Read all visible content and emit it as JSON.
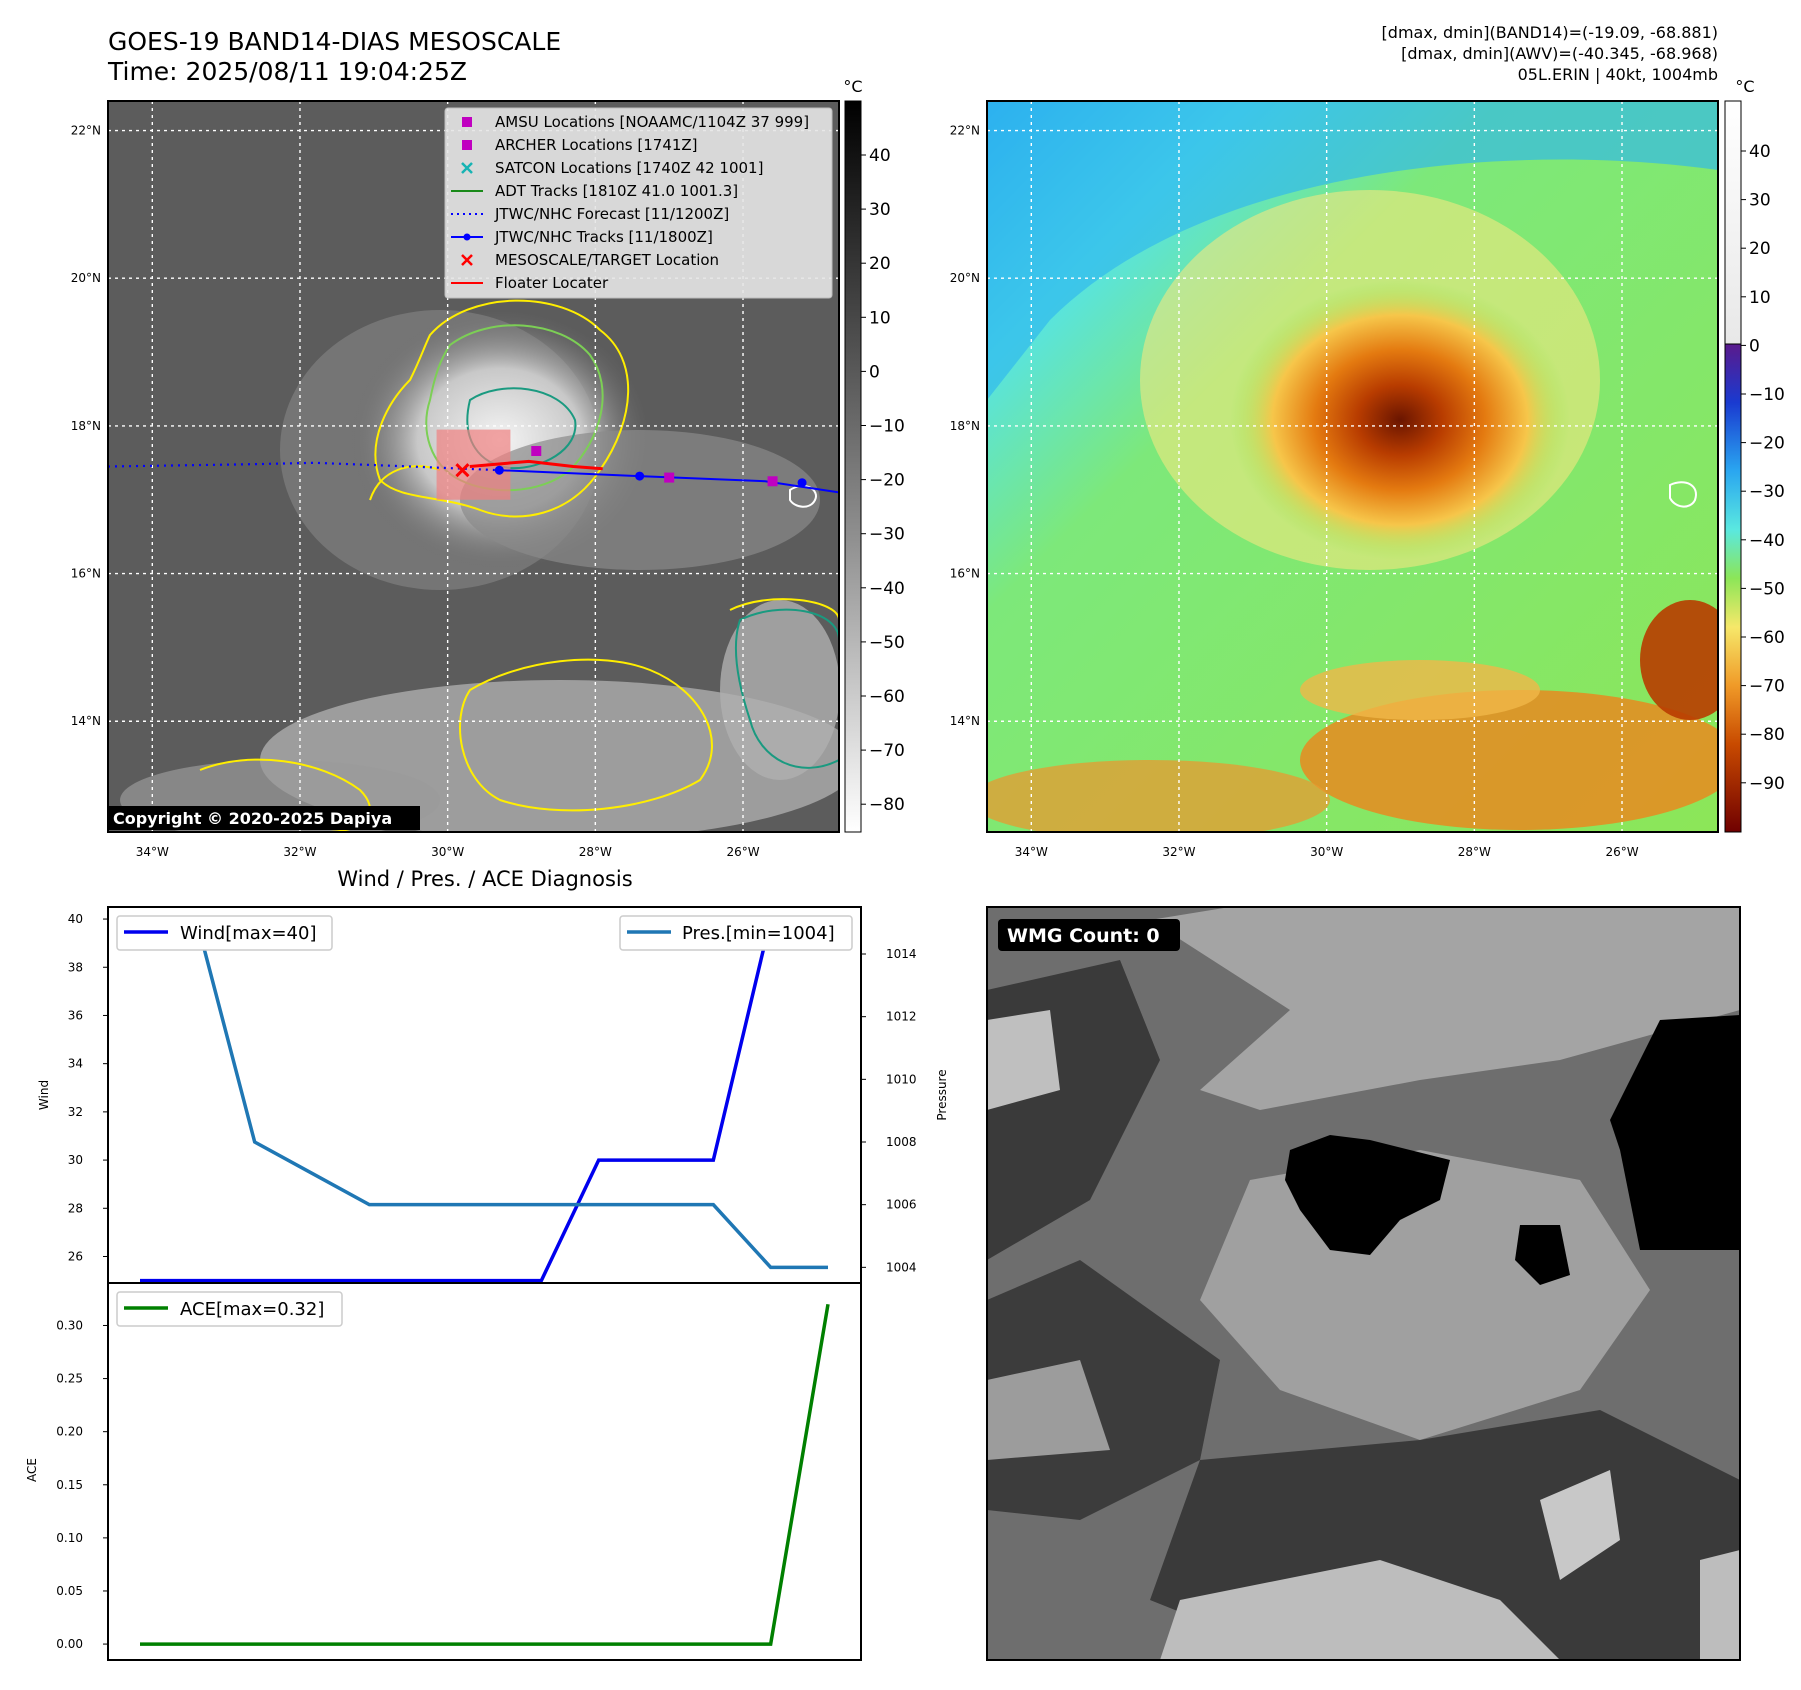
{
  "header": {
    "title_line1": "GOES-19 BAND14-DIAS MESOSCALE",
    "title_line2": "Time: 2025/08/11 19:04:25Z",
    "info_line1": "[dmax, dmin](BAND14)=(-19.09, -68.881)",
    "info_line2": "[dmax, dmin](AWV)=(-40.345, -68.968)",
    "info_line3": "05L.ERIN | 40kt, 1004mb"
  },
  "copyright": "Copyright © 2020-2025 Dapiya",
  "map": {
    "lat_ticks": [
      "22°N",
      "20°N",
      "18°N",
      "16°N",
      "14°N"
    ],
    "lon_ticks": [
      "34°W",
      "32°W",
      "30°W",
      "28°W",
      "26°W"
    ],
    "lon_range": [
      -34.6,
      -24.7
    ],
    "lat_range": [
      12.5,
      22.4
    ]
  },
  "legend": {
    "items": [
      {
        "label": "AMSU Locations [NOAAMC/1104Z 37 999]",
        "color": "#c000c0",
        "marker": "square"
      },
      {
        "label": "ARCHER Locations [1741Z]",
        "color": "#c000c0",
        "marker": "square"
      },
      {
        "label": "SATCON Locations [1740Z 42 1001]",
        "color": "#17b3b3",
        "marker": "x"
      },
      {
        "label": "ADT Tracks [1810Z 41.0 1001.3]",
        "color": "#1a8a1a",
        "marker": "line"
      },
      {
        "label": "JTWC/NHC Forecast [11/1200Z]",
        "color": "#0000ff",
        "marker": "dotted"
      },
      {
        "label": "JTWC/NHC Tracks [11/1800Z]",
        "color": "#0000ff",
        "marker": "line-dot"
      },
      {
        "label": "MESOSCALE/TARGET Location",
        "color": "#ff0000",
        "marker": "x"
      },
      {
        "label": "Floater Locater",
        "color": "#ff0000",
        "marker": "line"
      }
    ]
  },
  "colorbar_left": {
    "unit": "°C",
    "ticks": [
      "40",
      "30",
      "20",
      "10",
      "0",
      "−10",
      "−20",
      "−30",
      "−40",
      "−50",
      "−60",
      "−70",
      "−80"
    ]
  },
  "colorbar_right": {
    "unit": "°C",
    "ticks": [
      "40",
      "30",
      "20",
      "10",
      "0",
      "−10",
      "−20",
      "−30",
      "−40",
      "−50",
      "−60",
      "−70",
      "−80",
      "−90"
    ]
  },
  "panel_wmg": {
    "label": "WMG Count: 0"
  },
  "colors": {
    "wind": "#0000ee",
    "pressure": "#1f77b4",
    "ace": "#008000",
    "contour_yellow": "#ffee00",
    "contour_green": "#7ccf55",
    "contour_teal": "#1a9a80"
  },
  "chart_data": [
    {
      "type": "line",
      "title": "Wind / Pres. / ACE Diagnosis",
      "ylabel": "Wind",
      "y2label": "Pressure",
      "ylim": [
        24.9,
        40.5
      ],
      "y2lim": [
        1003.5,
        1015.5
      ],
      "yticks": [
        "40",
        "38",
        "36",
        "34",
        "32",
        "30",
        "28",
        "26"
      ],
      "y2ticks": [
        "1014",
        "1012",
        "1010",
        "1008",
        "1006",
        "1004"
      ],
      "x": [
        0,
        1,
        2,
        3,
        4,
        5,
        6,
        7,
        8,
        9,
        10,
        11,
        12
      ],
      "series": [
        {
          "name": "Wind[max=40]",
          "axis": "left",
          "values": [
            25,
            25,
            25,
            25,
            25,
            25,
            25,
            25,
            30,
            30,
            30,
            40,
            40
          ]
        },
        {
          "name": "Pres.[min=1004]",
          "axis": "right",
          "values": [
            1015,
            1015,
            1008,
            1007,
            1006,
            1006,
            1006,
            1006,
            1006,
            1006,
            1006,
            1004,
            1004
          ]
        }
      ]
    },
    {
      "type": "line",
      "ylabel": "ACE",
      "ylim": [
        -0.015,
        0.34
      ],
      "yticks": [
        "0.30",
        "0.25",
        "0.20",
        "0.15",
        "0.10",
        "0.05",
        "0.00"
      ],
      "x": [
        0,
        1,
        2,
        3,
        4,
        5,
        6,
        7,
        8,
        9,
        10,
        11,
        12
      ],
      "series": [
        {
          "name": "ACE[max=0.32]",
          "values": [
            0,
            0,
            0,
            0,
            0,
            0,
            0,
            0,
            0,
            0,
            0,
            0,
            0.32
          ]
        }
      ]
    }
  ]
}
